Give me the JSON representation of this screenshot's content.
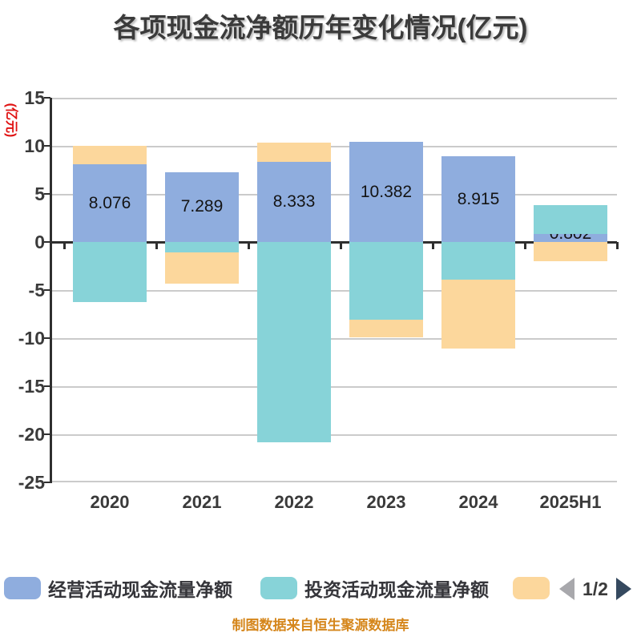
{
  "title": "各项现金流净额历年变化情况(亿元)",
  "y_axis": {
    "unit_label": "(亿元)",
    "unit_label_color": "#e01313",
    "ticks": [
      15,
      10,
      5,
      0,
      -5,
      -10,
      -15,
      -20,
      -25
    ]
  },
  "chart_data": {
    "type": "bar",
    "stacked": true,
    "title": "各项现金流净额历年变化情况(亿元)",
    "ylabel": "(亿元)",
    "ylim": [
      -25,
      15
    ],
    "grid": true,
    "legend_position": "bottom",
    "categories": [
      "2020",
      "2021",
      "2022",
      "2023",
      "2024",
      "2025H1"
    ],
    "series": [
      {
        "name": "经营活动现金流量净额",
        "color": "#8fadde",
        "values": [
          8.076,
          7.289,
          8.333,
          10.382,
          8.915,
          0.802
        ],
        "value_labels": [
          "8.076",
          "7.289",
          "8.333",
          "10.382",
          "8.915",
          "0.802"
        ]
      },
      {
        "name": "投资活动现金流量净额",
        "color": "#87d3d8",
        "values": [
          -6.25,
          -1.1,
          -20.8,
          -8.05,
          -3.9,
          3.07
        ]
      },
      {
        "name": "",
        "color": "#fcd79c",
        "values": [
          1.93,
          -3.25,
          2.02,
          -1.85,
          -7.2,
          -2.0
        ]
      }
    ]
  },
  "legend": {
    "items": [
      {
        "label": "经营活动现金流量净额",
        "color": "#8fadde"
      },
      {
        "label": "投资活动现金流量净额",
        "color": "#87d3d8"
      },
      {
        "label": "",
        "color": "#fcd79c"
      }
    ],
    "pagination": {
      "current": "1/2",
      "prev_icon": "left-arrow",
      "next_icon": "right-arrow"
    }
  },
  "footer": {
    "caption": "制图数据来自恒生聚源数据库"
  },
  "colors": {
    "title": "#3b3b3b",
    "axis": "#2f2f2f",
    "gridline": "#cbcbcb",
    "tick_label": "#3a3a3a",
    "caption": "#d5861b",
    "pagination_prev": "#a8a8ac",
    "pagination_next": "#35495f"
  }
}
